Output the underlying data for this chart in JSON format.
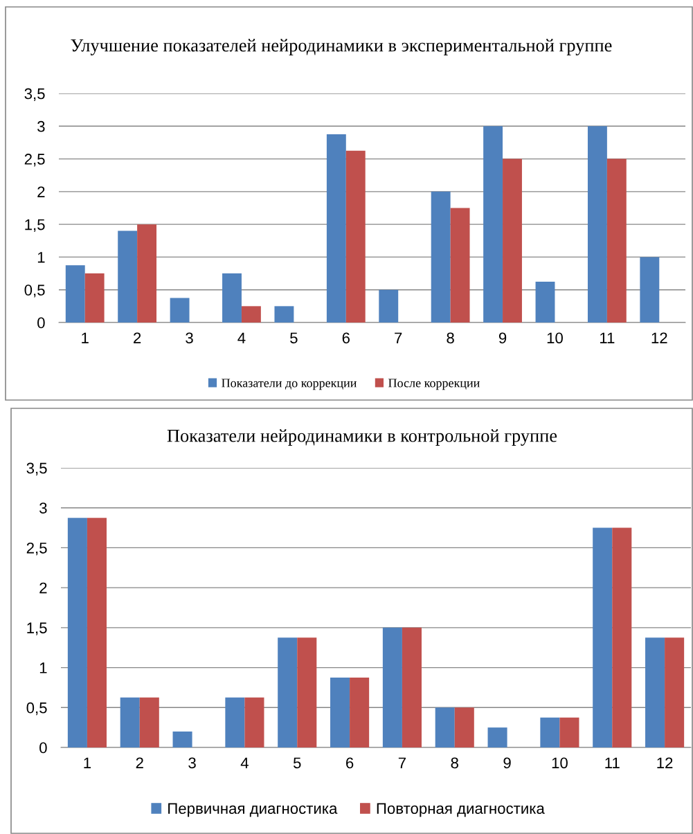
{
  "chart_data": [
    {
      "type": "bar",
      "title": "Улучшение показателей нейродинамики в экспериментальной группе",
      "categories": [
        "1",
        "2",
        "3",
        "4",
        "5",
        "6",
        "7",
        "8",
        "9",
        "10",
        "11",
        "12"
      ],
      "series": [
        {
          "name": "Показатели до коррекции",
          "color": "#4f81bd",
          "values": [
            0.875,
            1.4,
            0.375,
            0.75,
            0.25,
            2.875,
            0.5,
            2,
            3,
            0.625,
            3,
            1
          ]
        },
        {
          "name": "После коррекции",
          "color": "#c0504d",
          "values": [
            0.75,
            1.5,
            0,
            0.25,
            0,
            2.625,
            0,
            1.75,
            2.5,
            0,
            2.5,
            0
          ]
        }
      ],
      "ylim": [
        0,
        3.5
      ],
      "yticks": [
        0,
        {
          "value": 0.5,
          "label": "0,5"
        },
        1,
        {
          "value": 1.5,
          "label": "1,5"
        },
        2,
        {
          "value": 2.5,
          "label": "2,5"
        },
        3,
        {
          "value": 3.5,
          "label": "3,5"
        }
      ],
      "grid": "y",
      "legend": "bottom"
    },
    {
      "type": "bar",
      "title": "Показатели нейродинамики в контрольной группе",
      "categories": [
        "1",
        "2",
        "3",
        "4",
        "5",
        "6",
        "7",
        "8",
        "9",
        "10",
        "11",
        "12"
      ],
      "series": [
        {
          "name": "Первичная диагностика",
          "color": "#4f81bd",
          "values": [
            2.875,
            0.625,
            0.2,
            0.625,
            1.375,
            0.875,
            1.5,
            0.5,
            0.25,
            0.375,
            2.75,
            1.375
          ]
        },
        {
          "name": "Повторная диагностика",
          "color": "#c0504d",
          "values": [
            2.875,
            0.625,
            0,
            0.625,
            1.375,
            0.875,
            1.5,
            0.5,
            0,
            0.375,
            2.75,
            1.375
          ]
        }
      ],
      "ylim": [
        0,
        3.5
      ],
      "yticks": [
        0,
        {
          "value": 0.5,
          "label": "0,5"
        },
        1,
        {
          "value": 1.5,
          "label": "1,5"
        },
        2,
        {
          "value": 2.5,
          "label": "2,5"
        },
        3,
        {
          "value": 3.5,
          "label": "3,5"
        }
      ],
      "grid": "y",
      "legend": "bottom"
    }
  ]
}
